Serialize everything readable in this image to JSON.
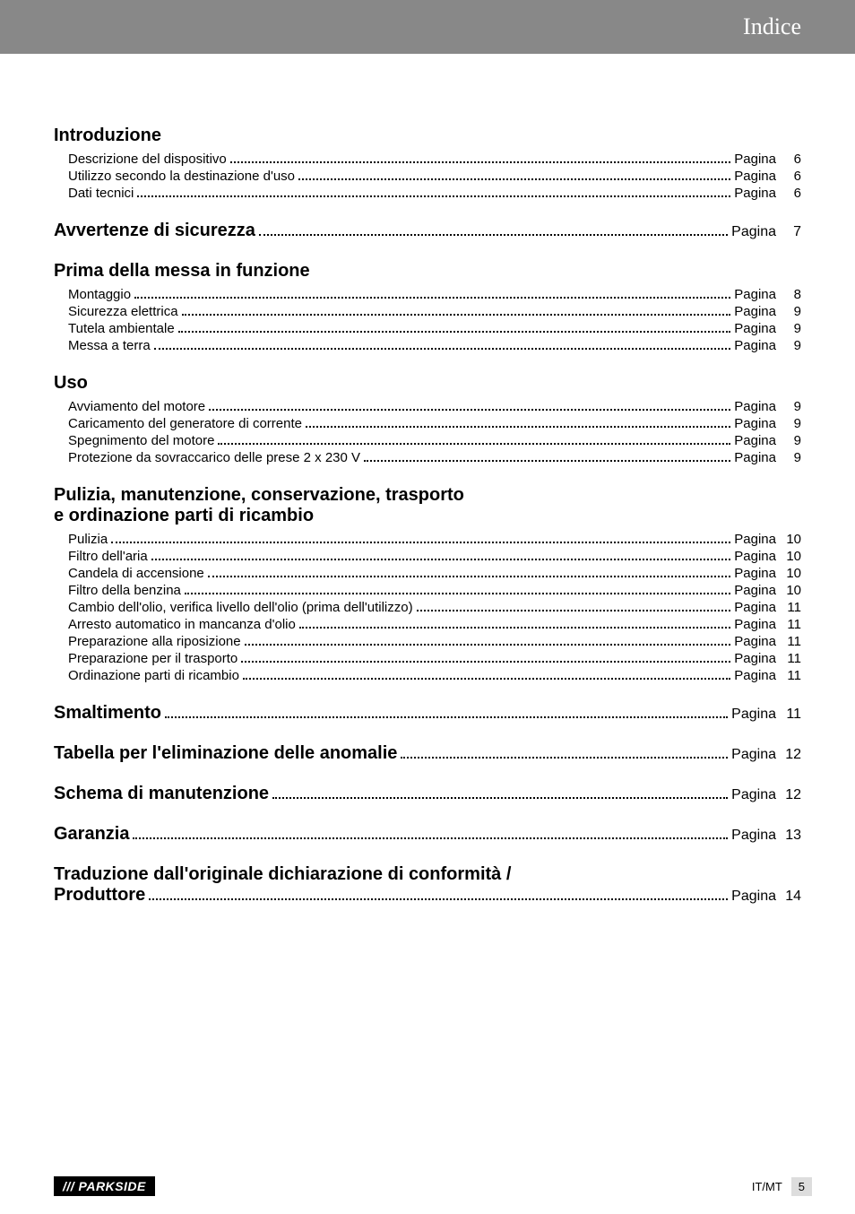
{
  "header": {
    "title": "Indice"
  },
  "sections": {
    "intro": {
      "title": "Introduzione",
      "items": [
        {
          "label": "Descrizione del dispositivo",
          "pageLabel": "Pagina",
          "pageNum": "6"
        },
        {
          "label": "Utilizzo secondo la destinazione d'uso",
          "pageLabel": "Pagina",
          "pageNum": "6"
        },
        {
          "label": "Dati tecnici",
          "pageLabel": "Pagina",
          "pageNum": "6"
        }
      ]
    },
    "avvertenze": {
      "title": "Avvertenze di sicurezza",
      "pageLabel": "Pagina",
      "pageNum": "7"
    },
    "prima": {
      "title": "Prima della messa in funzione",
      "items": [
        {
          "label": "Montaggio",
          "pageLabel": "Pagina",
          "pageNum": "8"
        },
        {
          "label": "Sicurezza elettrica",
          "pageLabel": "Pagina",
          "pageNum": "9"
        },
        {
          "label": "Tutela ambientale",
          "pageLabel": "Pagina",
          "pageNum": "9"
        },
        {
          "label": "Messa a terra",
          "pageLabel": "Pagina",
          "pageNum": "9"
        }
      ]
    },
    "uso": {
      "title": "Uso",
      "items": [
        {
          "label": "Avviamento del motore",
          "pageLabel": "Pagina",
          "pageNum": "9"
        },
        {
          "label": "Caricamento del generatore di corrente",
          "pageLabel": "Pagina",
          "pageNum": "9"
        },
        {
          "label": "Spegnimento del motore",
          "pageLabel": "Pagina",
          "pageNum": "9"
        },
        {
          "label": "Protezione da sovraccarico delle prese 2 x 230 V",
          "pageLabel": "Pagina",
          "pageNum": "9"
        }
      ]
    },
    "pulizia": {
      "titleLine1": "Pulizia, manutenzione, conservazione, trasporto",
      "titleLine2": "e ordinazione parti di ricambio",
      "items": [
        {
          "label": "Pulizia",
          "pageLabel": "Pagina",
          "pageNum": "10"
        },
        {
          "label": "Filtro dell'aria",
          "pageLabel": "Pagina",
          "pageNum": "10"
        },
        {
          "label": "Candela di accensione",
          "pageLabel": "Pagina",
          "pageNum": "10"
        },
        {
          "label": "Filtro della benzina",
          "pageLabel": "Pagina",
          "pageNum": "10"
        },
        {
          "label": "Cambio dell'olio, verifica livello dell'olio (prima dell'utilizzo)",
          "pageLabel": "Pagina",
          "pageNum": "11"
        },
        {
          "label": "Arresto automatico in mancanza d'olio",
          "pageLabel": "Pagina",
          "pageNum": "11"
        },
        {
          "label": "Preparazione alla riposizione",
          "pageLabel": "Pagina",
          "pageNum": "11"
        },
        {
          "label": "Preparazione per il trasporto",
          "pageLabel": "Pagina",
          "pageNum": "11"
        },
        {
          "label": "Ordinazione parti di ricambio",
          "pageLabel": "Pagina",
          "pageNum": "11"
        }
      ]
    },
    "smaltimento": {
      "title": "Smaltimento",
      "pageLabel": "Pagina",
      "pageNum": "11"
    },
    "tabella": {
      "title": "Tabella per l'eliminazione delle anomalie",
      "pageLabel": "Pagina",
      "pageNum": "12"
    },
    "schema": {
      "title": "Schema di manutenzione",
      "pageLabel": "Pagina",
      "pageNum": "12"
    },
    "garanzia": {
      "title": "Garanzia",
      "pageLabel": "Pagina",
      "pageNum": "13"
    },
    "traduzione": {
      "titleLine1": "Traduzione dall'originale dichiarazione di conformità /",
      "titleLine2": "Produttore",
      "pageLabel": "Pagina",
      "pageNum": "14"
    }
  },
  "footer": {
    "logo": "/// PARKSIDE",
    "lang": "IT/MT",
    "pageNum": "5"
  }
}
